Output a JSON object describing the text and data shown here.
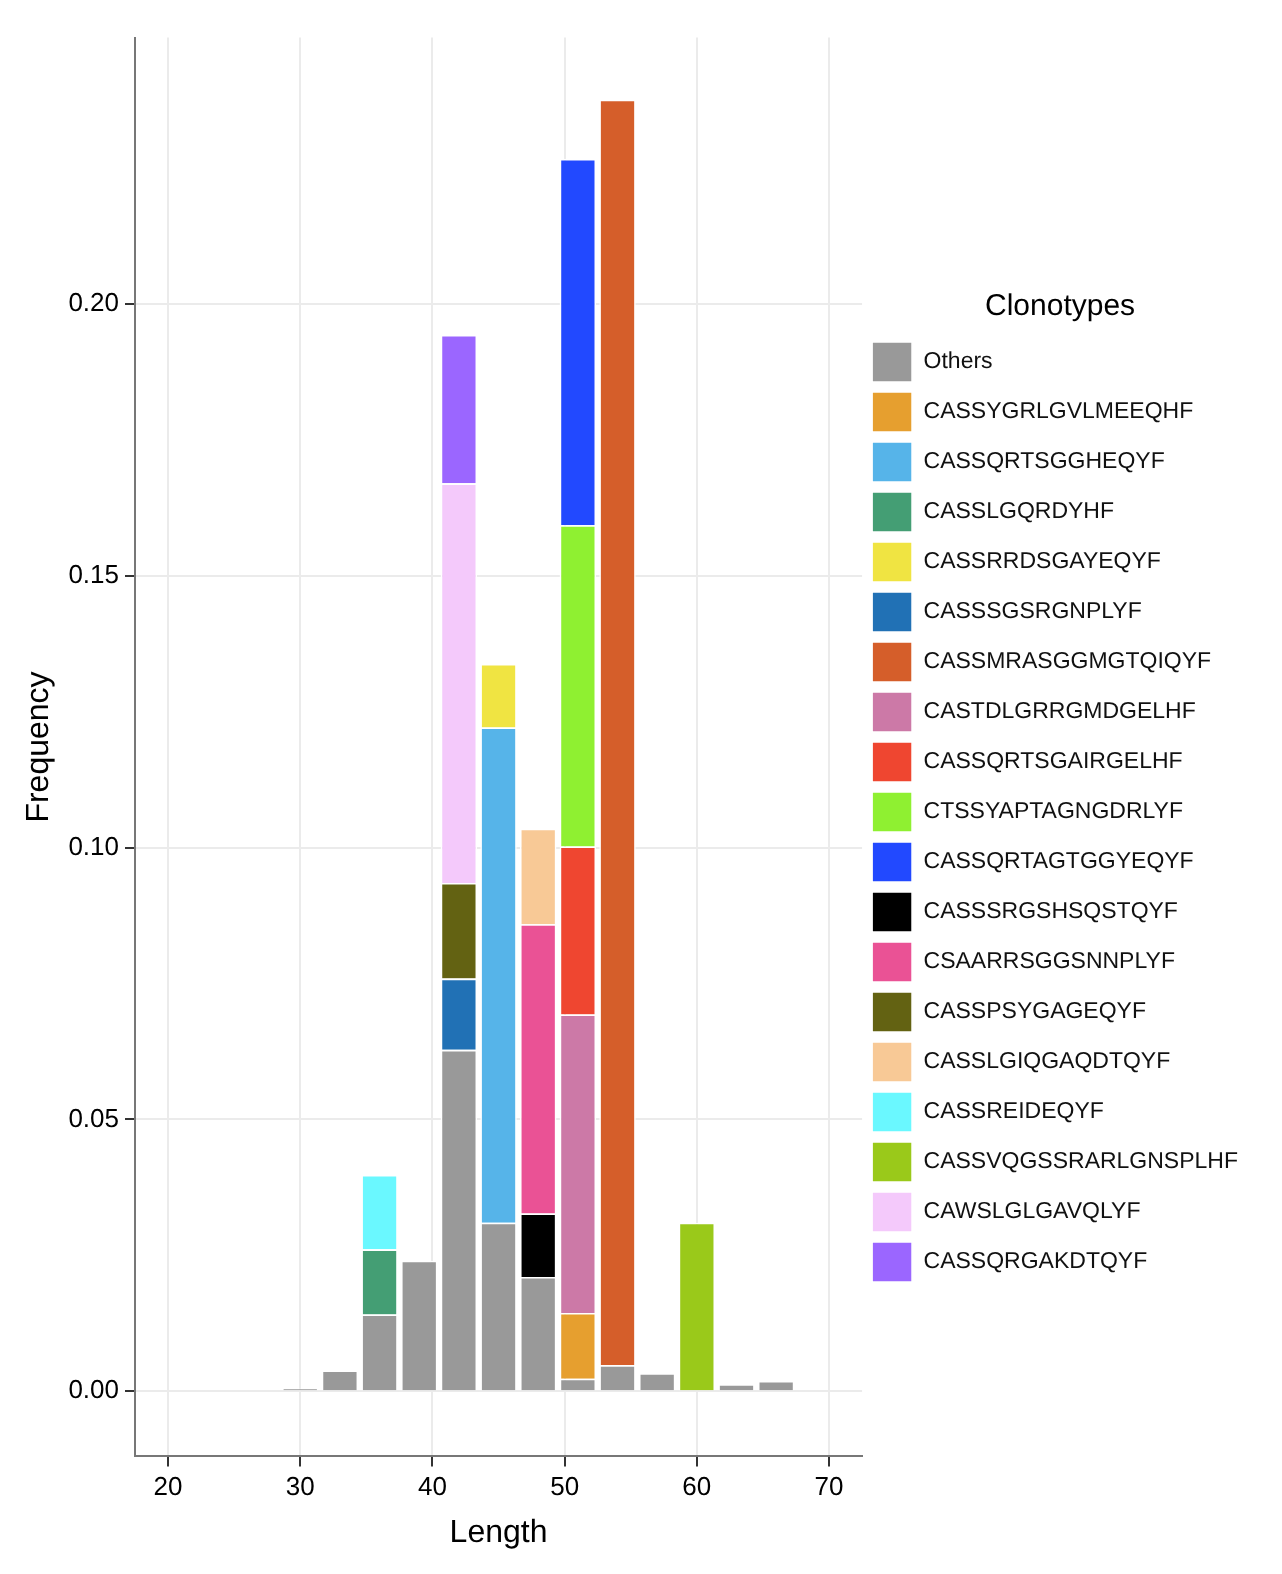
{
  "chart_data": {
    "type": "bar",
    "stacked": true,
    "xlabel": "Length",
    "ylabel": "Frequency",
    "legend_title": "Clonotypes",
    "legend": "right",
    "grid": true,
    "x": [
      30,
      33,
      36,
      39,
      42,
      45,
      48,
      51,
      54,
      57,
      60,
      63,
      66
    ],
    "xlim": [
      17.5,
      72.5
    ],
    "xticks": [
      20,
      30,
      40,
      50,
      60,
      70
    ],
    "ylim": [
      -0.012,
      0.249
    ],
    "yticks": [
      {
        "value": 0,
        "label": "0.00"
      },
      {
        "value": 0.05,
        "label": "0.05"
      },
      {
        "value": 0.1,
        "label": "0.10"
      },
      {
        "value": 0.15,
        "label": "0.15"
      },
      {
        "value": 0.2,
        "label": "0.20"
      }
    ],
    "series": [
      {
        "name": "Others",
        "color": "#999999",
        "values": [
          0.0005,
          0.0038,
          0.0141,
          0.024,
          0.0628,
          0.031,
          0.021,
          0.0023,
          0.0048,
          0.0033,
          null,
          0.0013,
          0.0019
        ]
      },
      {
        "name": "CASSYGRLGVLMEEQHF",
        "color": "#e69f2f",
        "values": [
          null,
          null,
          null,
          null,
          null,
          null,
          null,
          0.0121,
          null,
          null,
          null,
          null,
          null
        ]
      },
      {
        "name": "CASSQRTSGGHEQYF",
        "color": "#56b4e9",
        "values": [
          null,
          null,
          null,
          null,
          null,
          0.0911,
          null,
          null,
          null,
          null,
          null,
          null,
          null
        ]
      },
      {
        "name": "CASSLGQRDYHF",
        "color": "#449e74",
        "values": [
          null,
          null,
          0.012,
          null,
          null,
          null,
          null,
          null,
          null,
          null,
          null,
          null,
          null
        ]
      },
      {
        "name": "CASSRRDSGAYEQYF",
        "color": "#f0e442",
        "values": [
          null,
          null,
          null,
          null,
          null,
          0.0117,
          null,
          null,
          null,
          null,
          null,
          null,
          null
        ]
      },
      {
        "name": "CASSSGSRGNPLYF",
        "color": "#2171b5",
        "values": [
          null,
          null,
          null,
          null,
          0.0131,
          null,
          null,
          null,
          null,
          null,
          null,
          null,
          null
        ]
      },
      {
        "name": "CASSMRASGGMGTQIQYF",
        "color": "#d55e2a",
        "values": [
          null,
          null,
          null,
          null,
          null,
          null,
          null,
          null,
          0.2328,
          null,
          null,
          null,
          null
        ]
      },
      {
        "name": "CASTDLGRRGMDGELHF",
        "color": "#cc79a7",
        "values": [
          null,
          null,
          null,
          null,
          null,
          null,
          null,
          0.0549,
          null,
          null,
          null,
          null,
          null
        ]
      },
      {
        "name": "CASSQRTSGAIRGELHF",
        "color": "#ef4630",
        "values": [
          null,
          null,
          null,
          null,
          null,
          null,
          null,
          0.0309,
          null,
          null,
          null,
          null,
          null
        ]
      },
      {
        "name": "CTSSYAPTAGNGDRLYF",
        "color": "#8ff031",
        "values": [
          null,
          null,
          null,
          null,
          null,
          null,
          null,
          0.0591,
          null,
          null,
          null,
          null,
          null
        ]
      },
      {
        "name": "CASSQRTAGTGGYEQYF",
        "color": "#2249ff",
        "values": [
          null,
          null,
          null,
          null,
          null,
          null,
          null,
          0.0674,
          null,
          null,
          null,
          null,
          null
        ]
      },
      {
        "name": "CASSSRGSHSQSTQYF",
        "color": "#000000",
        "values": [
          null,
          null,
          null,
          null,
          null,
          null,
          0.0117,
          null,
          null,
          null,
          null,
          null,
          null
        ]
      },
      {
        "name": "CSAARRSGGSNNPLYF",
        "color": "#ea5295",
        "values": [
          null,
          null,
          null,
          null,
          null,
          null,
          0.0532,
          null,
          null,
          null,
          null,
          null,
          null
        ]
      },
      {
        "name": "CASSPSYGAGEQYF",
        "color": "#636212",
        "values": [
          null,
          null,
          null,
          null,
          0.0176,
          null,
          null,
          null,
          null,
          null,
          null,
          null,
          null
        ]
      },
      {
        "name": "CASSLGIQGAQDTQYF",
        "color": "#f8c996",
        "values": [
          null,
          null,
          null,
          null,
          null,
          null,
          0.0176,
          null,
          null,
          null,
          null,
          null,
          null
        ]
      },
      {
        "name": "CASSREIDEQYF",
        "color": "#6af8ff",
        "values": [
          null,
          null,
          0.0137,
          null,
          null,
          null,
          null,
          null,
          null,
          null,
          null,
          null,
          null
        ]
      },
      {
        "name": "CASSVQGSSRARLGNSPLHF",
        "color": "#9ac91a",
        "values": [
          null,
          null,
          null,
          null,
          null,
          null,
          null,
          null,
          null,
          null,
          0.031,
          null,
          null
        ]
      },
      {
        "name": "CAWSLGLGAVQLYF",
        "color": "#f4c9fb",
        "values": [
          null,
          null,
          null,
          null,
          0.0735,
          null,
          null,
          null,
          null,
          null,
          null,
          null,
          null
        ]
      },
      {
        "name": "CASSQRGAKDTQYF",
        "color": "#9b66ff",
        "values": [
          null,
          null,
          null,
          null,
          0.0273,
          null,
          null,
          null,
          null,
          null,
          null,
          null,
          null
        ]
      }
    ]
  }
}
